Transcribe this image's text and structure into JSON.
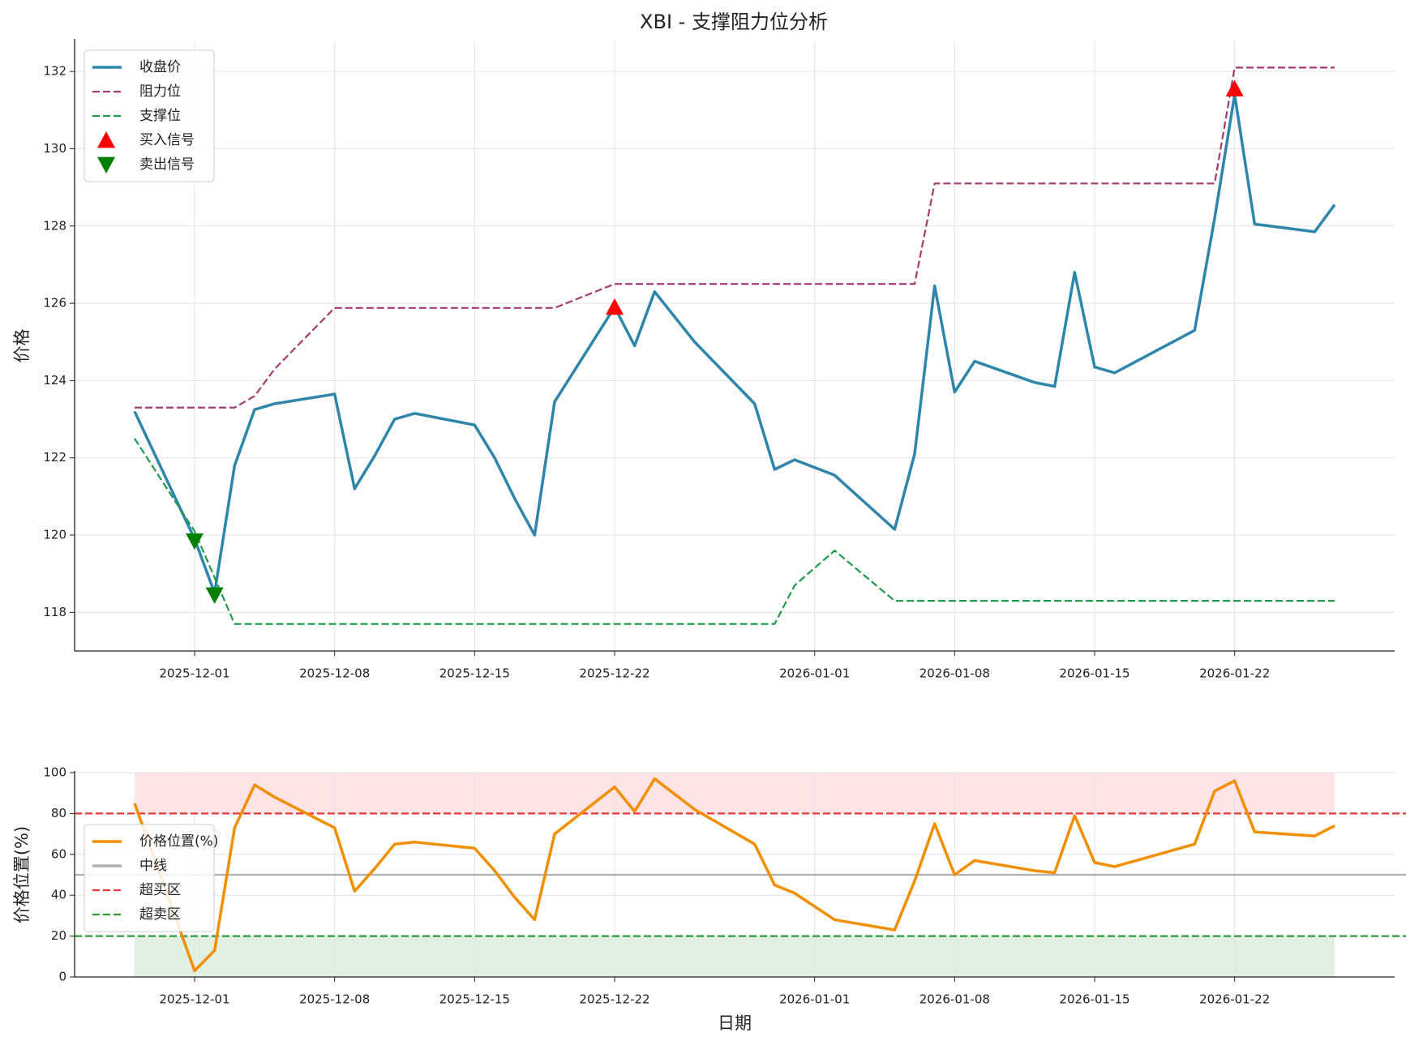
{
  "chart_data": [
    {
      "type": "line",
      "title": "XBI - 支撑阻力位分析",
      "ylabel": "价格",
      "legend": "upper left",
      "grid": true,
      "x": [
        "2025-11-28",
        "2025-12-01",
        "2025-12-02",
        "2025-12-03",
        "2025-12-04",
        "2025-12-05",
        "2025-12-08",
        "2025-12-09",
        "2025-12-10",
        "2025-12-11",
        "2025-12-12",
        "2025-12-15",
        "2025-12-16",
        "2025-12-17",
        "2025-12-18",
        "2025-12-19",
        "2025-12-22",
        "2025-12-23",
        "2025-12-24",
        "2025-12-26",
        "2025-12-29",
        "2025-12-30",
        "2025-12-31",
        "2026-01-02",
        "2026-01-05",
        "2026-01-06",
        "2026-01-07",
        "2026-01-08",
        "2026-01-09",
        "2026-01-12",
        "2026-01-13",
        "2026-01-14",
        "2026-01-15",
        "2026-01-16",
        "2026-01-20",
        "2026-01-21",
        "2026-01-22",
        "2026-01-23",
        "2026-01-26",
        "2026-01-27"
      ],
      "xlim": [
        "2025-11-25",
        "2026-01-30"
      ],
      "xticks": [
        "2025-12-01",
        "2025-12-08",
        "2025-12-15",
        "2025-12-22",
        "2026-01-01",
        "2026-01-08",
        "2026-01-15",
        "2026-01-22"
      ],
      "ylim": [
        117.0,
        132.8
      ],
      "yticks": [
        118,
        120,
        122,
        124,
        126,
        128,
        130,
        132
      ],
      "series": [
        {
          "name": "收盘价",
          "color": "#2e86ab",
          "linestyle": "solid",
          "values": [
            123.2,
            119.9,
            118.5,
            121.8,
            123.25,
            123.4,
            123.65,
            121.2,
            122.05,
            123.0,
            123.15,
            122.85,
            122.0,
            120.95,
            120.0,
            123.45,
            125.9,
            124.9,
            126.3,
            125.0,
            123.4,
            121.7,
            121.95,
            121.55,
            120.15,
            122.1,
            126.45,
            123.7,
            124.5,
            123.95,
            123.85,
            126.8,
            124.35,
            124.2,
            125.3,
            128.2,
            131.4,
            128.05,
            127.85,
            128.55
          ]
        },
        {
          "name": "阻力位",
          "color": "#a23b72",
          "linestyle": "dashed",
          "values": [
            123.3,
            123.3,
            123.3,
            123.3,
            123.6,
            124.3,
            125.88,
            125.88,
            125.88,
            125.88,
            125.88,
            125.88,
            125.88,
            125.88,
            125.88,
            125.88,
            126.5,
            126.5,
            126.5,
            126.5,
            126.5,
            126.5,
            126.5,
            126.5,
            126.5,
            126.5,
            129.1,
            129.1,
            129.1,
            129.1,
            129.1,
            129.1,
            129.1,
            129.1,
            129.1,
            129.1,
            132.1,
            132.1,
            132.1,
            132.1
          ]
        },
        {
          "name": "支撑位",
          "color": "#1e9a4c",
          "linestyle": "dashed",
          "values": [
            122.5,
            120.1,
            118.9,
            117.7,
            117.7,
            117.7,
            117.7,
            117.7,
            117.7,
            117.7,
            117.7,
            117.7,
            117.7,
            117.7,
            117.7,
            117.7,
            117.7,
            117.7,
            117.7,
            117.7,
            117.7,
            117.7,
            118.7,
            119.6,
            118.3,
            118.3,
            118.3,
            118.3,
            118.3,
            118.3,
            118.3,
            118.3,
            118.3,
            118.3,
            118.3,
            118.3,
            118.3,
            118.3,
            118.3,
            118.3
          ]
        },
        {
          "name": "买入信号",
          "color": "#ff0000",
          "marker": "^",
          "values": [
            null,
            null,
            null,
            null,
            null,
            null,
            null,
            null,
            null,
            null,
            null,
            null,
            null,
            null,
            null,
            null,
            125.9,
            null,
            null,
            null,
            null,
            null,
            null,
            null,
            null,
            null,
            null,
            null,
            null,
            null,
            null,
            null,
            null,
            null,
            null,
            null,
            131.55,
            null,
            null,
            null
          ]
        },
        {
          "name": "卖出信号",
          "color": "#008000",
          "marker": "v",
          "values": [
            null,
            119.85,
            118.45,
            null,
            null,
            null,
            null,
            null,
            null,
            null,
            null,
            null,
            null,
            null,
            null,
            null,
            null,
            null,
            null,
            null,
            null,
            null,
            null,
            null,
            null,
            null,
            null,
            null,
            null,
            null,
            null,
            null,
            null,
            null,
            null,
            null,
            null,
            null,
            null,
            null
          ]
        }
      ]
    },
    {
      "type": "line",
      "xlabel": "日期",
      "ylabel": "价格位置(%)",
      "legend": "center left",
      "grid": true,
      "x": [
        "2025-11-28",
        "2025-12-01",
        "2025-12-02",
        "2025-12-03",
        "2025-12-04",
        "2025-12-05",
        "2025-12-08",
        "2025-12-09",
        "2025-12-10",
        "2025-12-11",
        "2025-12-12",
        "2025-12-15",
        "2025-12-16",
        "2025-12-17",
        "2025-12-18",
        "2025-12-19",
        "2025-12-22",
        "2025-12-23",
        "2025-12-24",
        "2025-12-26",
        "2025-12-29",
        "2025-12-30",
        "2025-12-31",
        "2026-01-02",
        "2026-01-05",
        "2026-01-06",
        "2026-01-07",
        "2026-01-08",
        "2026-01-09",
        "2026-01-12",
        "2026-01-13",
        "2026-01-14",
        "2026-01-15",
        "2026-01-16",
        "2026-01-20",
        "2026-01-21",
        "2026-01-22",
        "2026-01-23",
        "2026-01-26",
        "2026-01-27"
      ],
      "xlim": [
        "2025-11-25",
        "2026-01-30"
      ],
      "xticks": [
        "2025-12-01",
        "2025-12-08",
        "2025-12-15",
        "2025-12-22",
        "2026-01-01",
        "2026-01-08",
        "2026-01-15",
        "2026-01-22"
      ],
      "ylim": [
        0,
        100
      ],
      "yticks": [
        0,
        20,
        40,
        60,
        80,
        100
      ],
      "series": [
        {
          "name": "价格位置(%)",
          "color": "#f18f01",
          "linestyle": "solid",
          "values": [
            85,
            3,
            13,
            73,
            94,
            88,
            73,
            42,
            53,
            65,
            66,
            63,
            52,
            39,
            28,
            70,
            93,
            81,
            97,
            82,
            65,
            45,
            41,
            28,
            23,
            47,
            75,
            50,
            57,
            52,
            51,
            79,
            56,
            54,
            65,
            91,
            96,
            71,
            69,
            74
          ]
        }
      ],
      "hlines": [
        {
          "name": "中线",
          "value": 50,
          "color": "#b0b0b0",
          "linestyle": "solid"
        },
        {
          "name": "超买区",
          "value": 80,
          "color": "#e8383d",
          "linestyle": "dashed"
        },
        {
          "name": "超卖区",
          "value": 20,
          "color": "#2e9a3a",
          "linestyle": "dashed"
        }
      ],
      "bands": [
        {
          "from": 80,
          "to": 100,
          "color": "#ffcdd2"
        },
        {
          "from": 0,
          "to": 20,
          "color": "#c8e6c9"
        }
      ]
    }
  ]
}
